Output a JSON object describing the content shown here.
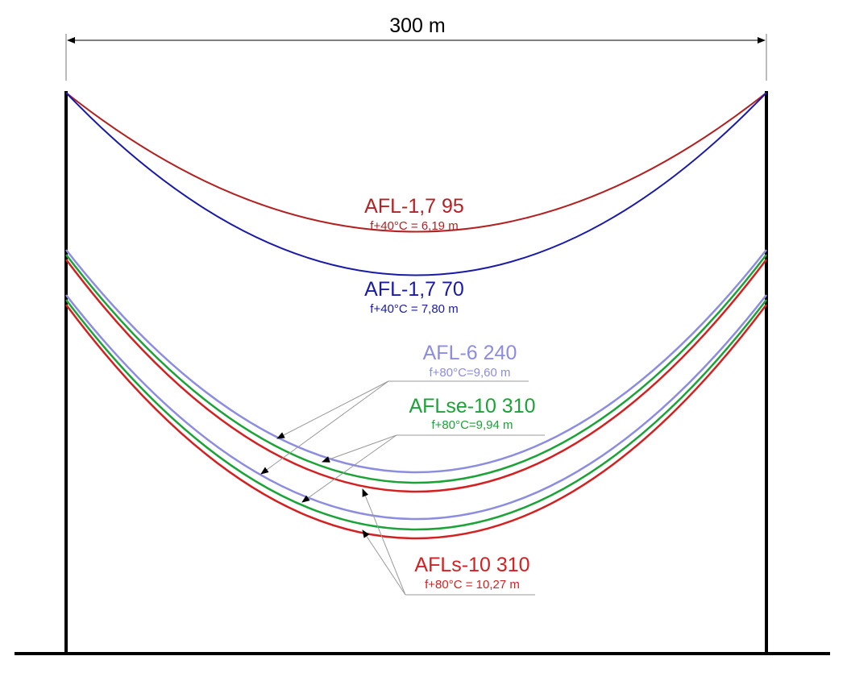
{
  "span": {
    "label": "300 m"
  },
  "cables": [
    {
      "key": "afl17_95",
      "name": "AFL-1,7 95",
      "sag_text": "f+40°C = 6,19 m",
      "color": "#b22222"
    },
    {
      "key": "afl17_70",
      "name": "AFL-1,7 70",
      "sag_text": "f+40°C = 7,80 m",
      "color": "#1a1aa8"
    },
    {
      "key": "afl6_240",
      "name": "AFL-6 240",
      "sag_text": "f+80°C=9,60 m",
      "color": "#8c8ce0"
    },
    {
      "key": "aflse10",
      "name": "AFLse-10 310",
      "sag_text": "f+80°C=9,94 m",
      "color": "#1aa337"
    },
    {
      "key": "afls10",
      "name": "AFLs-10 310",
      "sag_text": "f+80°C = 10,27 m",
      "color": "#d42020"
    }
  ]
}
